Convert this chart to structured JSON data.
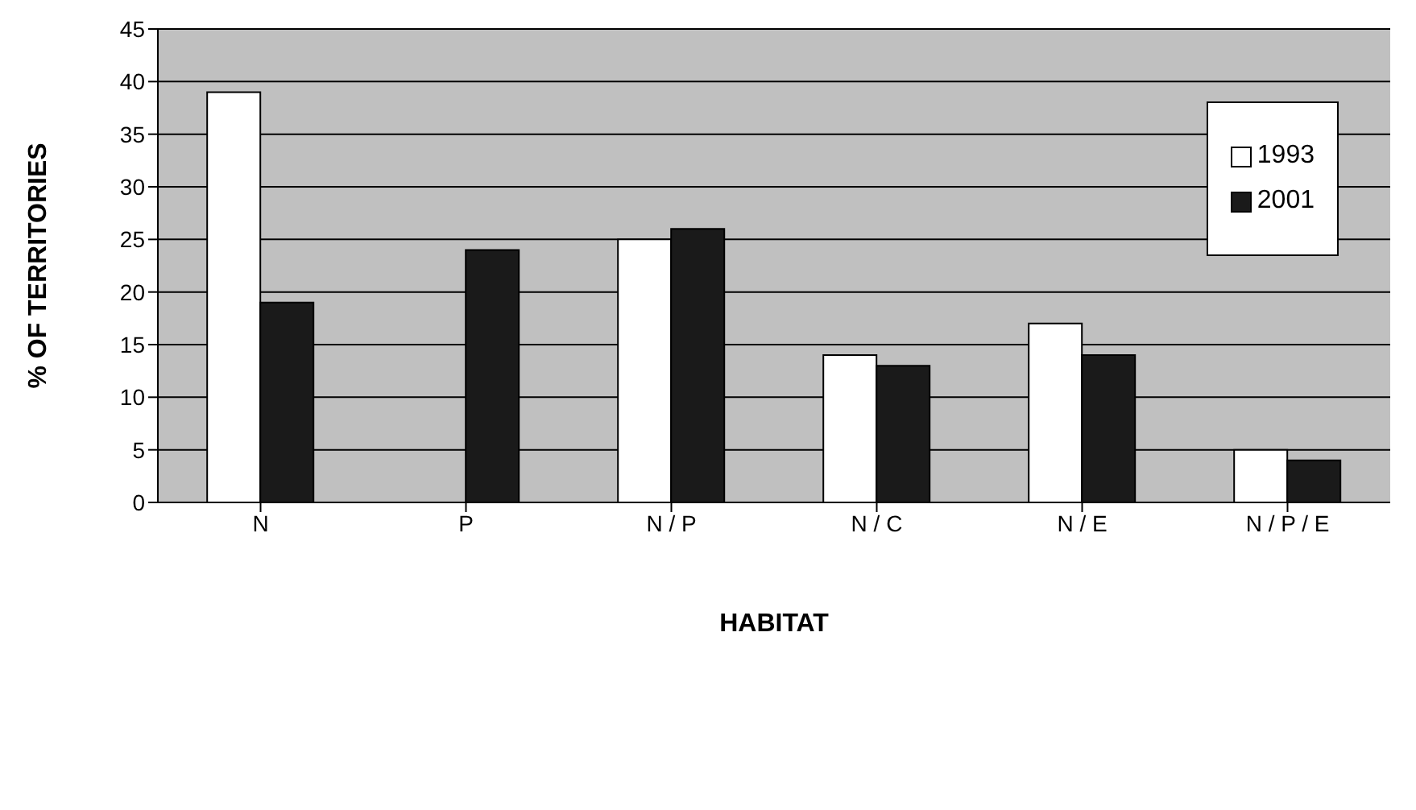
{
  "chart_data": {
    "type": "bar",
    "xlabel": "HABITAT",
    "ylabel": "% OF TERRITORIES",
    "categories": [
      "N",
      "P",
      "N / P",
      "N / C",
      "N / E",
      "N / P / E"
    ],
    "series": [
      {
        "name": "1993",
        "color": "#ffffff",
        "values": [
          39,
          0,
          25,
          14,
          17,
          5
        ]
      },
      {
        "name": "2001",
        "color": "#1a1a1a",
        "values": [
          19,
          24,
          26,
          13,
          14,
          4
        ]
      }
    ],
    "ylim": [
      0,
      45
    ],
    "yticks": [
      0,
      5,
      10,
      15,
      20,
      25,
      30,
      35,
      40,
      45
    ],
    "grid": "y",
    "legend": "top right"
  }
}
